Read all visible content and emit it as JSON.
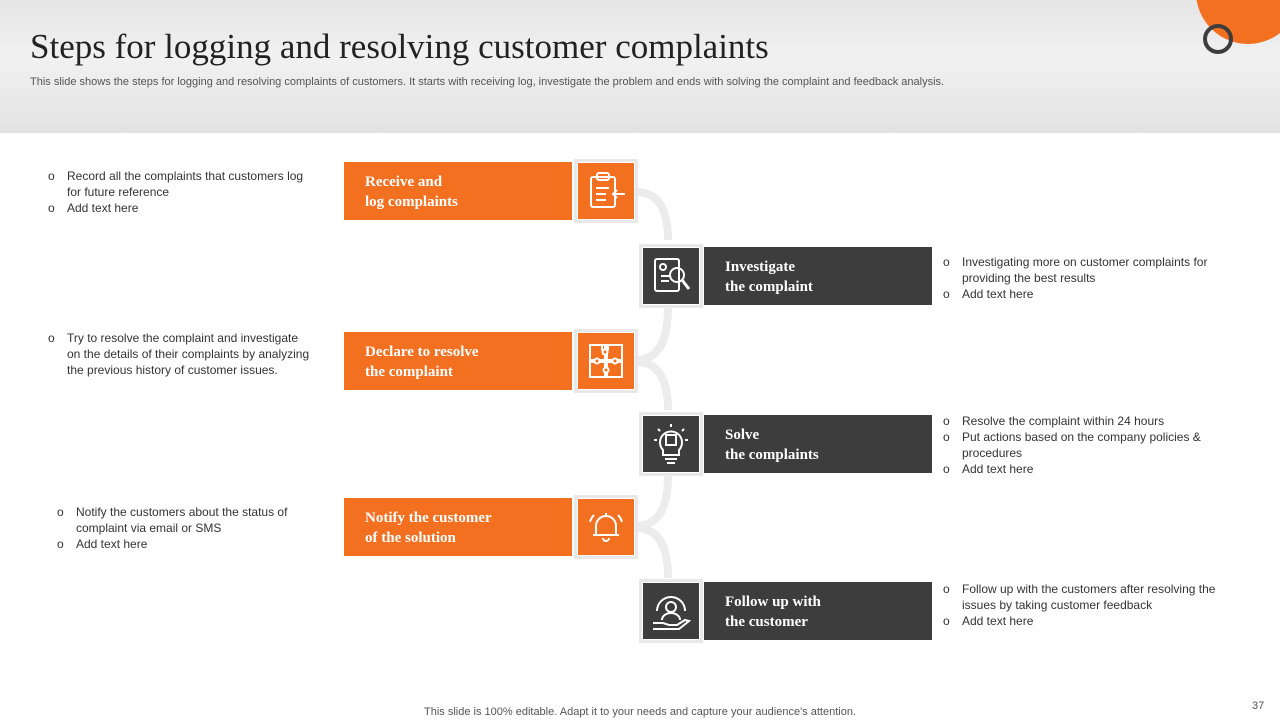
{
  "slide": {
    "title": "Steps for logging and resolving customer complaints",
    "subtitle": "This slide shows the steps for logging and resolving complaints of customers. It starts with receiving log, investigate the problem and ends with solving the complaint and feedback analysis.",
    "footer": "This slide is 100% editable. Adapt it to your needs and capture your audience's attention.",
    "page_number": "37",
    "colors": {
      "accent": "#f37021",
      "dark": "#3d3d3d"
    }
  },
  "steps": [
    {
      "label": "Receive and\nlog complaints",
      "icon": "clipboard-arrow-icon",
      "bullets": [
        "Record all the complaints that customers log for future reference",
        "Add text here"
      ]
    },
    {
      "label": "Investigate\nthe complaint",
      "icon": "document-search-icon",
      "bullets": [
        "Investigating more on customer complaints for providing the best results",
        "Add text here"
      ]
    },
    {
      "label": "Declare to resolve\nthe complaint",
      "icon": "puzzle-icon",
      "bullets": [
        "Try to resolve the complaint and investigate on the details of their complaints by analyzing the previous history of customer issues."
      ]
    },
    {
      "label": "Solve\nthe complaints",
      "icon": "lightbulb-puzzle-icon",
      "bullets": [
        "Resolve the complaint within 24 hours",
        "Put actions based on the company policies & procedures",
        "Add text here"
      ]
    },
    {
      "label": "Notify the customer\nof the solution",
      "icon": "bell-icon",
      "bullets": [
        "Notify the customers about the status of complaint via email or SMS",
        "Add text here"
      ]
    },
    {
      "label": "Follow up with\nthe customer",
      "icon": "customer-care-icon",
      "bullets": [
        "Follow up with the customers after resolving the issues by taking customer feedback",
        "Add text here"
      ]
    }
  ]
}
